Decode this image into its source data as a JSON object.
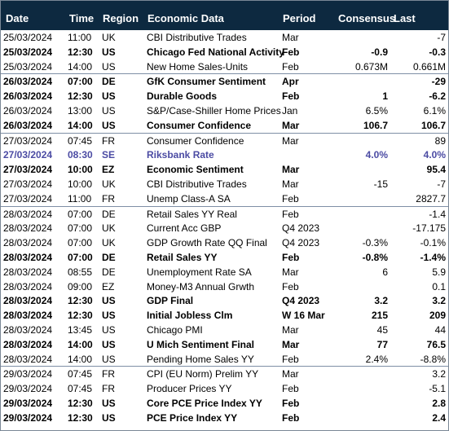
{
  "headers": {
    "date": "Date",
    "time": "Time",
    "region": "Region",
    "event": "Economic Data",
    "period": "Period",
    "consensus": "Consensus",
    "last": "Last"
  },
  "rows": [
    {
      "date": "25/03/2024",
      "time": "11:00",
      "region": "UK",
      "event": "CBI Distributive Trades",
      "period": "Mar",
      "consensus": "",
      "last": "-7",
      "bold": false,
      "group_start": false
    },
    {
      "date": "25/03/2024",
      "time": "12:30",
      "region": "US",
      "event": "Chicago Fed National Activity",
      "period": "Feb",
      "consensus": "-0.9",
      "last": "-0.3",
      "bold": true,
      "group_start": false
    },
    {
      "date": "25/03/2024",
      "time": "14:00",
      "region": "US",
      "event": "New Home Sales-Units",
      "period": "Feb",
      "consensus": "0.673M",
      "last": "0.661M",
      "bold": false,
      "group_start": false
    },
    {
      "date": "26/03/2024",
      "time": "07:00",
      "region": "DE",
      "event": "GfK Consumer Sentiment",
      "period": "Apr",
      "consensus": "",
      "last": "-29",
      "bold": true,
      "group_start": true
    },
    {
      "date": "26/03/2024",
      "time": "12:30",
      "region": "US",
      "event": "Durable Goods",
      "period": "Feb",
      "consensus": "1",
      "last": "-6.2",
      "bold": true,
      "group_start": false
    },
    {
      "date": "26/03/2024",
      "time": "13:00",
      "region": "US",
      "event": "S&P/Case-Shiller Home Prices",
      "period": "Jan",
      "consensus": "6.5%",
      "last": "6.1%",
      "bold": false,
      "group_start": false
    },
    {
      "date": "26/03/2024",
      "time": "14:00",
      "region": "US",
      "event": "Consumer Confidence",
      "period": "Mar",
      "consensus": "106.7",
      "last": "106.7",
      "bold": true,
      "group_start": false
    },
    {
      "date": "27/03/2024",
      "time": "07:45",
      "region": "FR",
      "event": "Consumer Confidence",
      "period": "Mar",
      "consensus": "",
      "last": "89",
      "bold": false,
      "group_start": true
    },
    {
      "date": "27/03/2024",
      "time": "08:30",
      "region": "SE",
      "event": "Riksbank Rate",
      "period": "",
      "consensus": "4.0%",
      "last": "4.0%",
      "bold": false,
      "highlight": true,
      "group_start": false
    },
    {
      "date": "27/03/2024",
      "time": "10:00",
      "region": "EZ",
      "event": "Economic Sentiment",
      "period": "Mar",
      "consensus": "",
      "last": "95.4",
      "bold": true,
      "group_start": false
    },
    {
      "date": "27/03/2024",
      "time": "10:00",
      "region": "UK",
      "event": "CBI Distributive Trades",
      "period": "Mar",
      "consensus": "-15",
      "last": "-7",
      "bold": false,
      "group_start": false
    },
    {
      "date": "27/03/2024",
      "time": "11:00",
      "region": "FR",
      "event": "Unemp Class-A SA",
      "period": "Feb",
      "consensus": "",
      "last": "2827.7",
      "bold": false,
      "group_start": false
    },
    {
      "date": "28/03/2024",
      "time": "07:00",
      "region": "DE",
      "event": "Retail Sales YY Real",
      "period": "Feb",
      "consensus": "",
      "last": "-1.4",
      "bold": false,
      "group_start": true
    },
    {
      "date": "28/03/2024",
      "time": "07:00",
      "region": "UK",
      "event": "Current Acc GBP",
      "period": "Q4 2023",
      "consensus": "",
      "last": "-17.175",
      "bold": false,
      "group_start": false
    },
    {
      "date": "28/03/2024",
      "time": "07:00",
      "region": "UK",
      "event": "GDP Growth Rate QQ Final",
      "period": "Q4 2023",
      "consensus": "-0.3%",
      "last": "-0.1%",
      "bold": false,
      "group_start": false
    },
    {
      "date": "28/03/2024",
      "time": "07:00",
      "region": "DE",
      "event": "Retail Sales YY",
      "period": "Feb",
      "consensus": "-0.8%",
      "last": "-1.4%",
      "bold": true,
      "group_start": false
    },
    {
      "date": "28/03/2024",
      "time": "08:55",
      "region": "DE",
      "event": "Unemployment Rate SA",
      "period": "Mar",
      "consensus": "6",
      "last": "5.9",
      "bold": false,
      "group_start": false
    },
    {
      "date": "28/03/2024",
      "time": "09:00",
      "region": "EZ",
      "event": "Money-M3 Annual Grwth",
      "period": "Feb",
      "consensus": "",
      "last": "0.1",
      "bold": false,
      "group_start": false
    },
    {
      "date": "28/03/2024",
      "time": "12:30",
      "region": "US",
      "event": "GDP Final",
      "period": "Q4 2023",
      "consensus": "3.2",
      "last": "3.2",
      "bold": true,
      "group_start": false
    },
    {
      "date": "28/03/2024",
      "time": "12:30",
      "region": "US",
      "event": "Initial Jobless Clm",
      "period": "W 16 Mar",
      "consensus": "215",
      "last": "209",
      "bold": true,
      "group_start": false
    },
    {
      "date": "28/03/2024",
      "time": "13:45",
      "region": "US",
      "event": "Chicago PMI",
      "period": "Mar",
      "consensus": "45",
      "last": "44",
      "bold": false,
      "group_start": false
    },
    {
      "date": "28/03/2024",
      "time": "14:00",
      "region": "US",
      "event": "U Mich Sentiment Final",
      "period": "Mar",
      "consensus": "77",
      "last": "76.5",
      "bold": true,
      "group_start": false
    },
    {
      "date": "28/03/2024",
      "time": "14:00",
      "region": "US",
      "event": "Pending Home Sales YY",
      "period": "Feb",
      "consensus": "2.4%",
      "last": "-8.8%",
      "bold": false,
      "group_start": false
    },
    {
      "date": "29/03/2024",
      "time": "07:45",
      "region": "FR",
      "event": "CPI (EU Norm) Prelim YY",
      "period": "Mar",
      "consensus": "",
      "last": "3.2",
      "bold": false,
      "group_start": true
    },
    {
      "date": "29/03/2024",
      "time": "07:45",
      "region": "FR",
      "event": "Producer Prices YY",
      "period": "Feb",
      "consensus": "",
      "last": "-5.1",
      "bold": false,
      "group_start": false
    },
    {
      "date": "29/03/2024",
      "time": "12:30",
      "region": "US",
      "event": "Core PCE Price Index YY",
      "period": "Feb",
      "consensus": "",
      "last": "2.8",
      "bold": true,
      "group_start": false
    },
    {
      "date": "29/03/2024",
      "time": "12:30",
      "region": "US",
      "event": "PCE Price Index YY",
      "period": "Feb",
      "consensus": "",
      "last": "2.4",
      "bold": true,
      "group_start": false
    }
  ],
  "colors": {
    "header_bg": "#0d2940",
    "header_text": "#ffffff",
    "highlight_text": "#4b4ba3",
    "separator": "#7f8fa6"
  }
}
